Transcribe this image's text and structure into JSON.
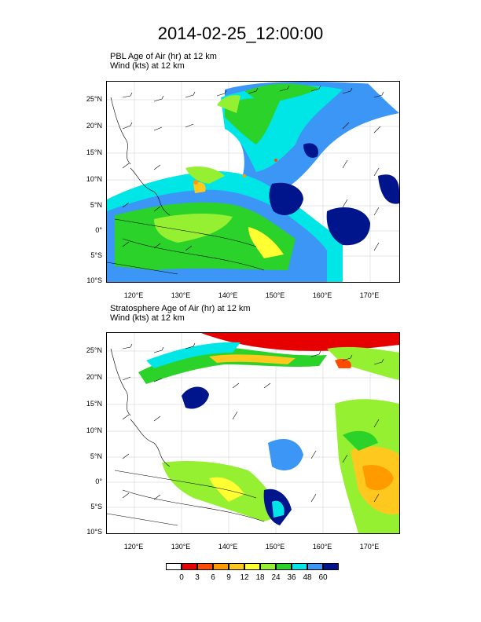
{
  "title": "2014-02-25_12:00:00",
  "panels": [
    {
      "line1": "PBL Age of Air   (hr)     at   12 km",
      "line2": "Wind   (kts)     at   12 km"
    },
    {
      "line1": "Stratosphere Age of Air   (hr)     at   12 km",
      "line2": "Wind   (kts)     at   12 km"
    }
  ],
  "lat_labels": [
    "25°N",
    "20°N",
    "15°N",
    "10°N",
    "5°N",
    "0°",
    "5°S",
    "10°S"
  ],
  "lon_labels": [
    "120°E",
    "130°E",
    "140°E",
    "150°E",
    "160°E",
    "170°E"
  ],
  "colorbar": {
    "labels": [
      "0",
      "3",
      "6",
      "9",
      "12",
      "18",
      "24",
      "36",
      "48",
      "60"
    ],
    "colors": [
      "#ffffff",
      "#e60000",
      "#ff4a00",
      "#ff9a00",
      "#ffc81e",
      "#ffff32",
      "#96f032",
      "#2ad22a",
      "#00e6e6",
      "#3c96f5",
      "#00148c"
    ]
  }
}
